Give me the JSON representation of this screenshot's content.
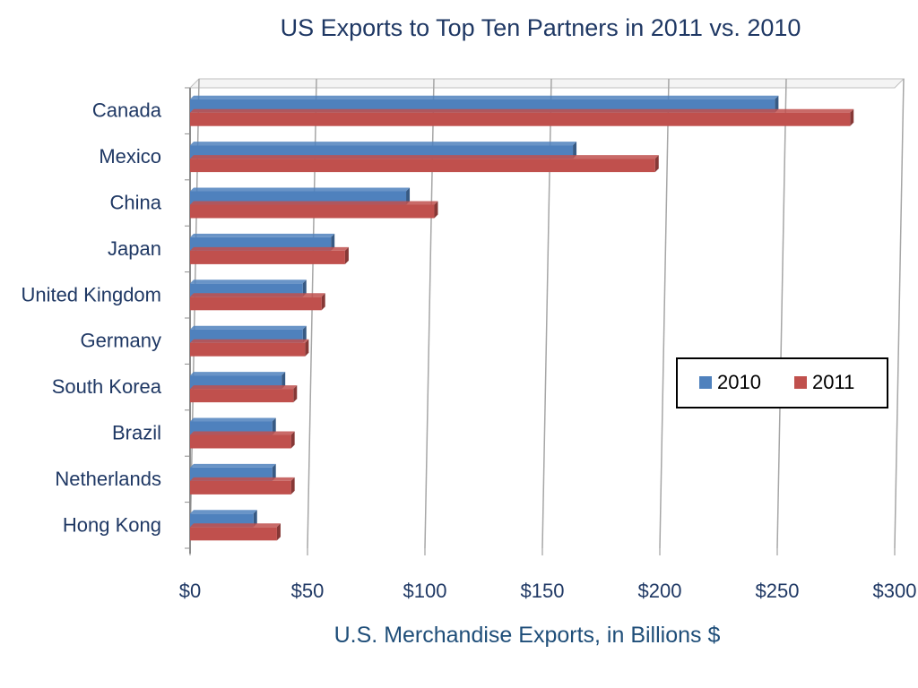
{
  "chart_data": {
    "type": "bar",
    "orientation": "horizontal",
    "title": "US Exports to Top Ten Partners in 2011 vs. 2010",
    "xlabel": "U.S. Merchandise Exports, in Billions $",
    "ylabel": "",
    "categories": [
      "Canada",
      "Mexico",
      "China",
      "Japan",
      "United Kingdom",
      "Germany",
      "South Korea",
      "Brazil",
      "Netherlands",
      "Hong Kong"
    ],
    "series": [
      {
        "name": "2010",
        "color": "#4f81bd",
        "values": [
          249,
          163,
          92,
          60,
          48,
          48,
          39,
          35,
          35,
          27
        ]
      },
      {
        "name": "2011",
        "color": "#c0504d",
        "values": [
          281,
          198,
          104,
          66,
          56,
          49,
          44,
          43,
          43,
          37
        ]
      }
    ],
    "xlim": [
      0,
      300
    ],
    "xticks": [
      0,
      50,
      100,
      150,
      200,
      250,
      300
    ],
    "xtick_labels": [
      "$0",
      "$50",
      "$100",
      "$150",
      "$200",
      "$250",
      "$300"
    ],
    "grid": true,
    "legend_position": "right"
  }
}
